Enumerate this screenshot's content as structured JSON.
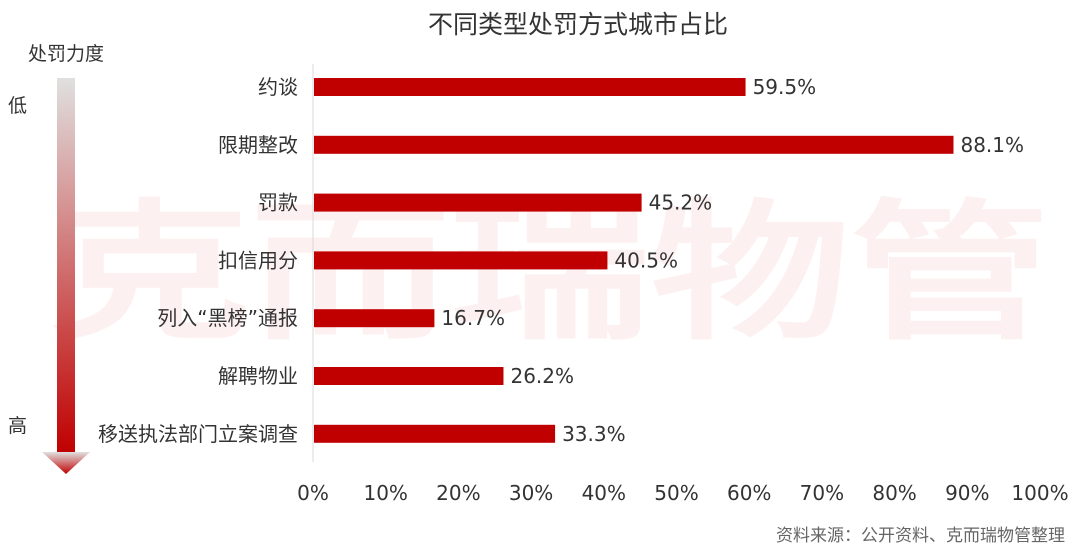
{
  "chart_data": {
    "type": "bar",
    "orientation": "horizontal",
    "title": "不同类型处罚方式城市占比",
    "categories": [
      "约谈",
      "限期整改",
      "罚款",
      "扣信用分",
      "列入“黑榜”通报",
      "解聘物业",
      "移送执法部门立案调查"
    ],
    "values": [
      59.5,
      88.1,
      45.2,
      40.5,
      16.7,
      26.2,
      33.3
    ],
    "value_labels": [
      "59.5%",
      "88.1%",
      "45.2%",
      "40.5%",
      "16.7%",
      "26.2%",
      "33.3%"
    ],
    "xlim": [
      0,
      100
    ],
    "x_ticks": [
      "0%",
      "10%",
      "20%",
      "30%",
      "40%",
      "50%",
      "60%",
      "70%",
      "80%",
      "90%",
      "100%"
    ],
    "grid": false,
    "bar_color": "#c00000"
  },
  "side_axis": {
    "title": "处罚力度",
    "low_label": "低",
    "high_label": "高",
    "arrow_colors": [
      "#e0e0e0",
      "#c00000"
    ]
  },
  "watermark": "克而瑞物管",
  "source": "资料来源：公开资料、克而瑞物管整理"
}
